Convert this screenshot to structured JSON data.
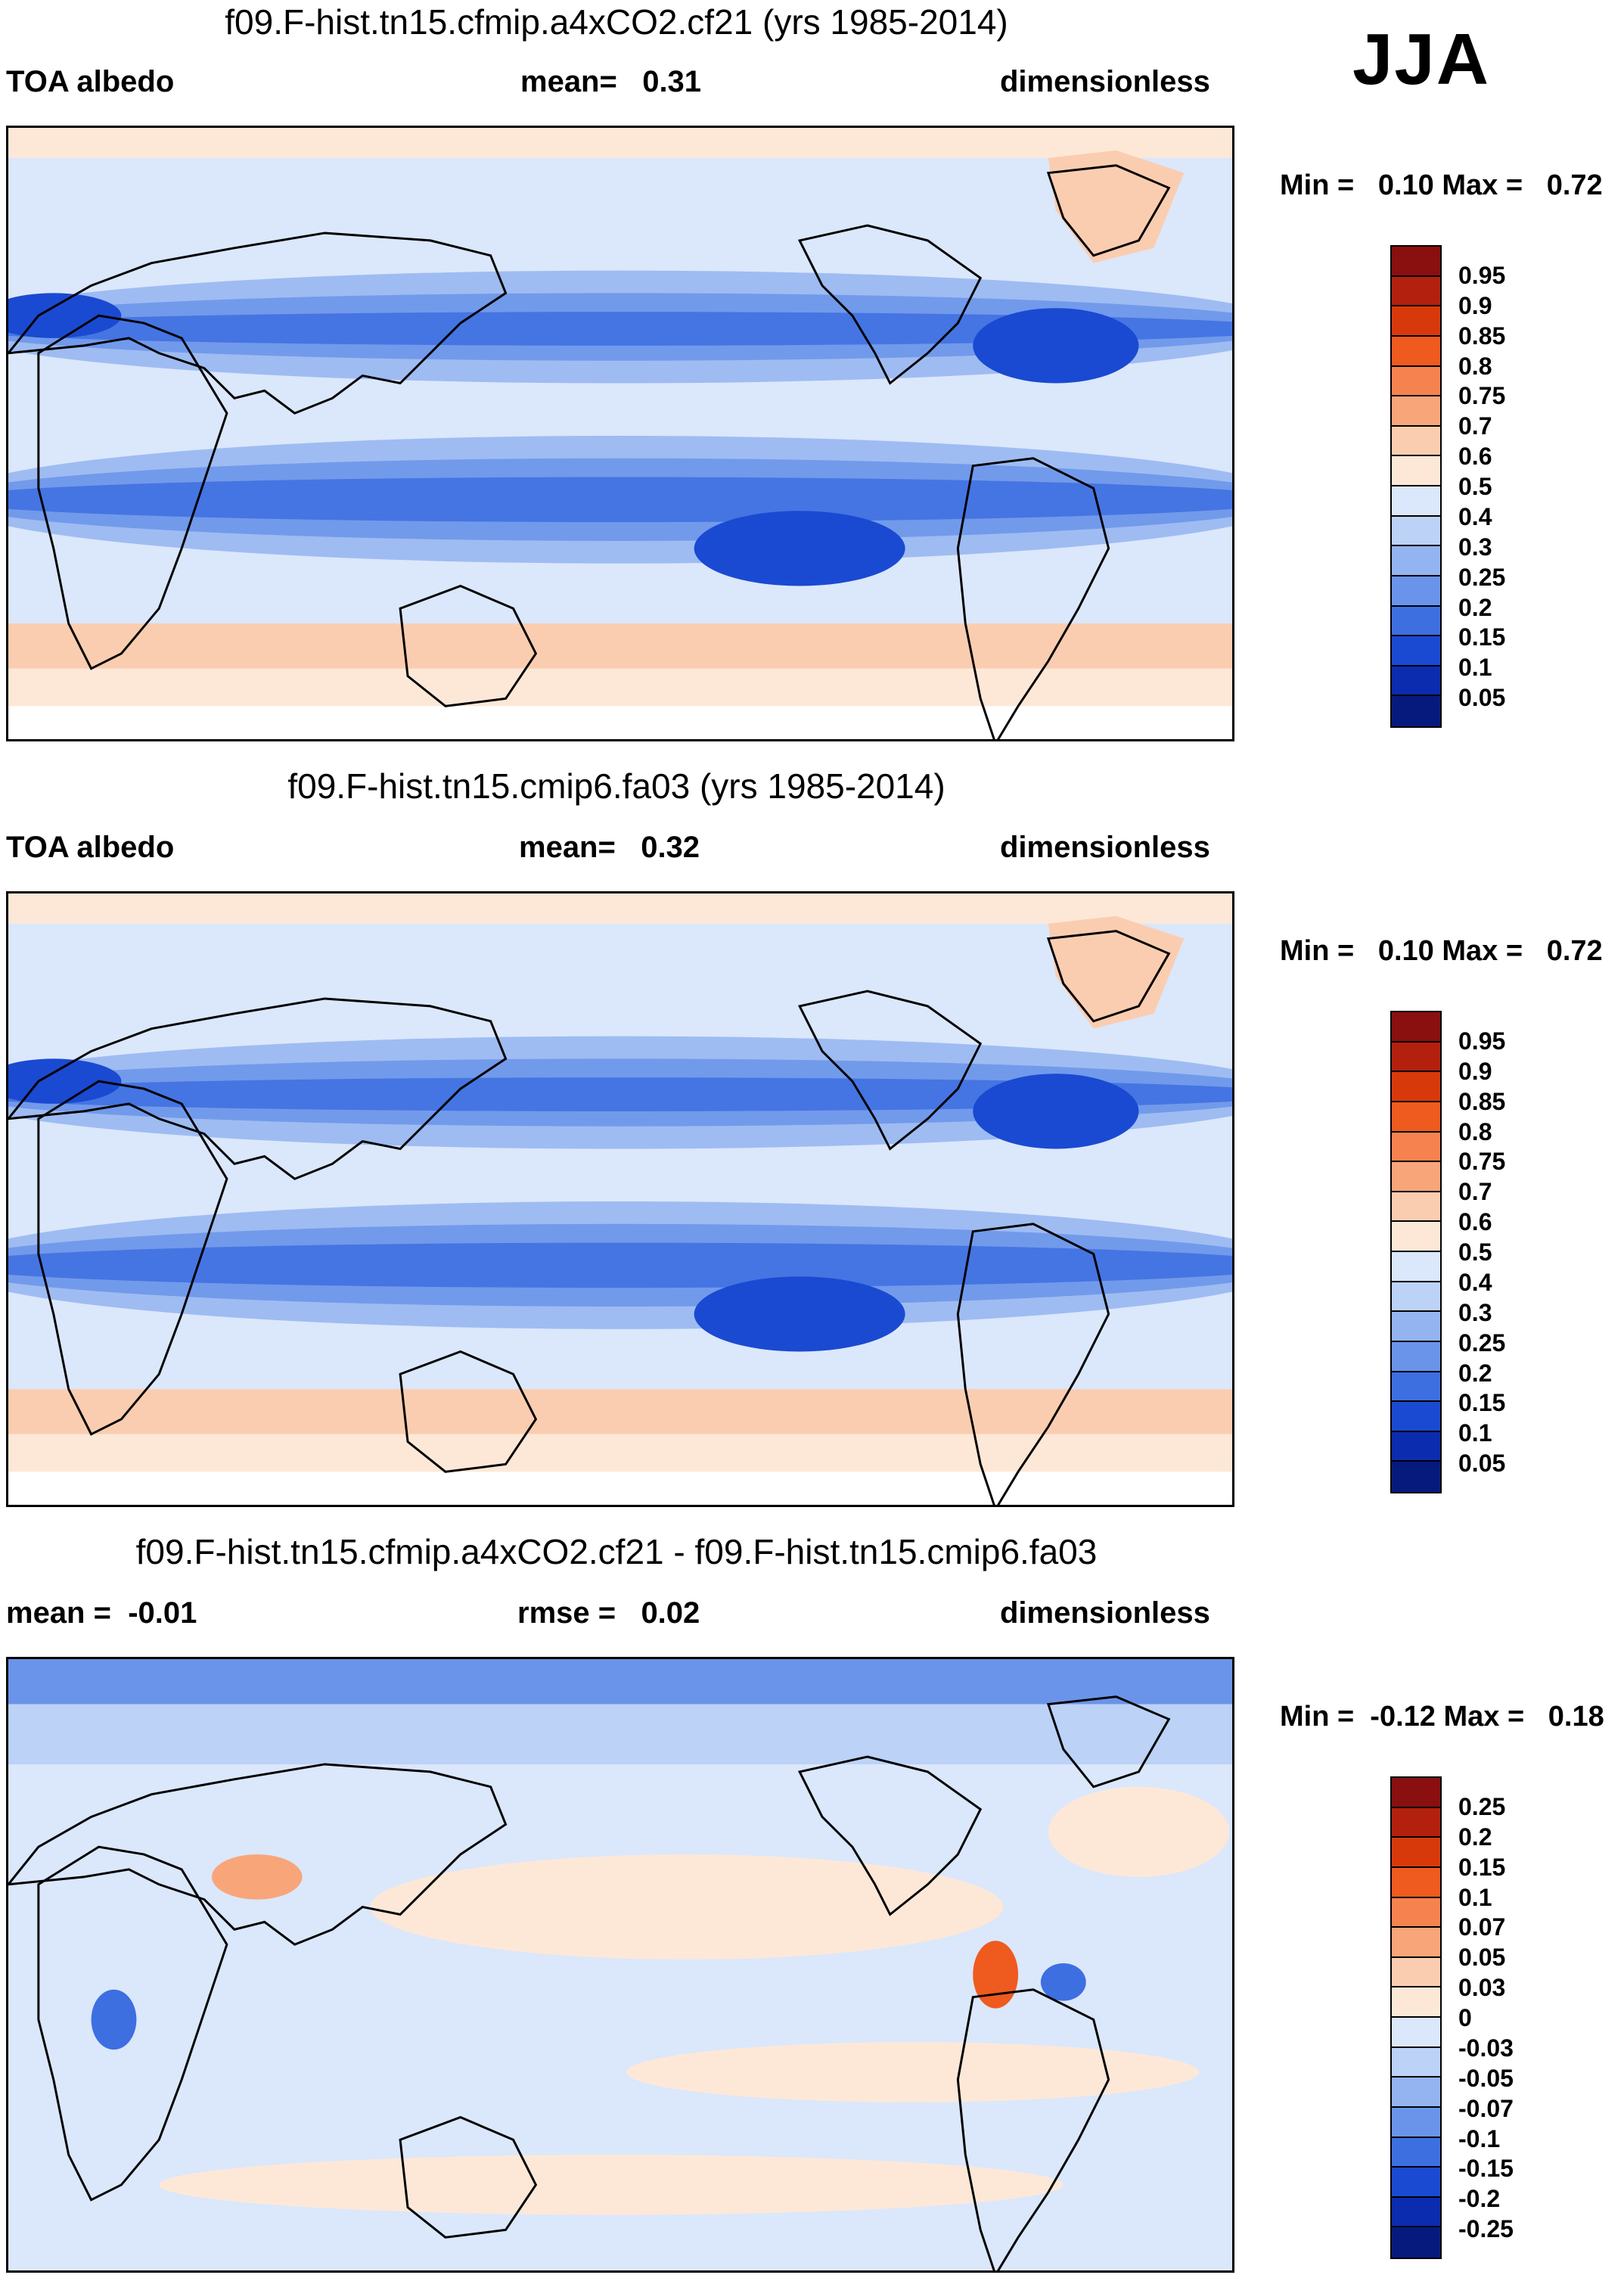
{
  "season": "JJA",
  "panels": [
    {
      "title": "f09.F-hist.tn15.cfmip.a4xCO2.cf21 (yrs 1985-2014)",
      "left_label": "TOA albedo",
      "center_label": "mean=   0.31",
      "right_label": "dimensionless",
      "minmax": "Min =   0.10 Max =   0.72",
      "kind": "abs",
      "colorbar": {
        "labels": [
          "0.95",
          "0.9",
          "0.85",
          "0.8",
          "0.75",
          "0.7",
          "0.6",
          "0.5",
          "0.4",
          "0.3",
          "0.25",
          "0.2",
          "0.15",
          "0.1",
          "0.05"
        ],
        "colors": [
          "#8a0f0f",
          "#b3200e",
          "#d8390b",
          "#ef5a1f",
          "#f6834f",
          "#f8a57a",
          "#fbcdb0",
          "#fde8d8",
          "#dbe7fb",
          "#bcd2f6",
          "#93b4f0",
          "#6a94ea",
          "#3d6fe1",
          "#1a4ad2",
          "#0b2cae",
          "#061a7e"
        ]
      }
    },
    {
      "title": "f09.F-hist.tn15.cmip6.fa03 (yrs 1985-2014)",
      "left_label": "TOA albedo",
      "center_label": "mean=   0.32",
      "right_label": "dimensionless",
      "minmax": "Min =   0.10 Max =   0.72",
      "kind": "abs",
      "colorbar": {
        "labels": [
          "0.95",
          "0.9",
          "0.85",
          "0.8",
          "0.75",
          "0.7",
          "0.6",
          "0.5",
          "0.4",
          "0.3",
          "0.25",
          "0.2",
          "0.15",
          "0.1",
          "0.05"
        ],
        "colors": [
          "#8a0f0f",
          "#b3200e",
          "#d8390b",
          "#ef5a1f",
          "#f6834f",
          "#f8a57a",
          "#fbcdb0",
          "#fde8d8",
          "#dbe7fb",
          "#bcd2f6",
          "#93b4f0",
          "#6a94ea",
          "#3d6fe1",
          "#1a4ad2",
          "#0b2cae",
          "#061a7e"
        ]
      }
    },
    {
      "title": "f09.F-hist.tn15.cfmip.a4xCO2.cf21 - f09.F-hist.tn15.cmip6.fa03",
      "left_label": "mean =  -0.01",
      "center_label": "rmse =   0.02",
      "right_label": "dimensionless",
      "minmax": "Min =  -0.12 Max =   0.18",
      "kind": "diff",
      "colorbar": {
        "labels": [
          "0.25",
          "0.2",
          "0.15",
          "0.1",
          "0.07",
          "0.05",
          "0.03",
          "0",
          "-0.03",
          "-0.05",
          "-0.07",
          "-0.1",
          "-0.15",
          "-0.2",
          "-0.25"
        ],
        "colors": [
          "#8a0f0f",
          "#b3200e",
          "#d8390b",
          "#ef5a1f",
          "#f6834f",
          "#f8a57a",
          "#fbcdb0",
          "#fde8d8",
          "#dbe7fb",
          "#bcd2f6",
          "#93b4f0",
          "#6a94ea",
          "#3d6fe1",
          "#1a4ad2",
          "#0b2cae",
          "#061a7e"
        ]
      }
    }
  ]
}
